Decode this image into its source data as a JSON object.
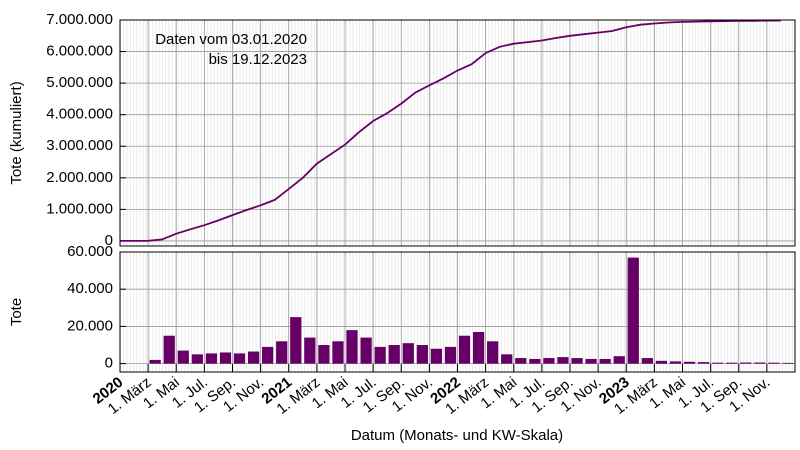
{
  "chart_data": [
    {
      "type": "line",
      "annotation": [
        "Daten vom 03.01.2020",
        "bis 19.12.2023"
      ],
      "ylabel": "Tote (kumuliert)",
      "x": [
        "2020-01",
        "2020-02",
        "2020-03",
        "2020-04",
        "2020-05",
        "2020-06",
        "2020-07",
        "2020-08",
        "2020-09",
        "2020-10",
        "2020-11",
        "2020-12",
        "2021-01",
        "2021-02",
        "2021-03",
        "2021-04",
        "2021-05",
        "2021-06",
        "2021-07",
        "2021-08",
        "2021-09",
        "2021-10",
        "2021-11",
        "2021-12",
        "2022-01",
        "2022-02",
        "2022-03",
        "2022-04",
        "2022-05",
        "2022-06",
        "2022-07",
        "2022-08",
        "2022-09",
        "2022-10",
        "2022-11",
        "2022-12",
        "2023-01",
        "2023-02",
        "2023-03",
        "2023-04",
        "2023-05",
        "2023-06",
        "2023-07",
        "2023-08",
        "2023-09",
        "2023-10",
        "2023-11",
        "2023-12"
      ],
      "series": [
        {
          "color": "#660066",
          "values": [
            0,
            0,
            5000,
            50000,
            230000,
            370000,
            500000,
            650000,
            820000,
            980000,
            1130000,
            1300000,
            1650000,
            2000000,
            2450000,
            2750000,
            3050000,
            3450000,
            3800000,
            4050000,
            4350000,
            4700000,
            4930000,
            5150000,
            5400000,
            5600000,
            5950000,
            6150000,
            6250000,
            6300000,
            6350000,
            6430000,
            6500000,
            6550000,
            6600000,
            6650000,
            6770000,
            6850000,
            6890000,
            6920000,
            6940000,
            6950000,
            6960000,
            6965000,
            6970000,
            6975000,
            6980000,
            6985000
          ]
        }
      ],
      "xlim": [
        "2020-01",
        "2024-01"
      ],
      "ylim": [
        -160000,
        7000000
      ],
      "yticks": [
        0,
        {
          "value": 1000000,
          "label": "1.000.000"
        },
        {
          "value": 2000000,
          "label": "2.000.000"
        },
        {
          "value": 3000000,
          "label": "3.000.000"
        },
        {
          "value": 4000000,
          "label": "4.000.000"
        },
        {
          "value": 5000000,
          "label": "5.000.000"
        },
        {
          "value": 6000000,
          "label": "6.000.000"
        },
        {
          "value": 7000000,
          "label": "7.000.000"
        }
      ],
      "grid": true
    },
    {
      "type": "bar",
      "ylabel": "Tote",
      "xlabel": "Datum (Monats- und KW-Skala)",
      "x": [
        "2020-01",
        "2020-02",
        "2020-03",
        "2020-04",
        "2020-05",
        "2020-06",
        "2020-07",
        "2020-08",
        "2020-09",
        "2020-10",
        "2020-11",
        "2020-12",
        "2021-01",
        "2021-02",
        "2021-03",
        "2021-04",
        "2021-05",
        "2021-06",
        "2021-07",
        "2021-08",
        "2021-09",
        "2021-10",
        "2021-11",
        "2021-12",
        "2022-01",
        "2022-02",
        "2022-03",
        "2022-04",
        "2022-05",
        "2022-06",
        "2022-07",
        "2022-08",
        "2022-09",
        "2022-10",
        "2022-11",
        "2022-12",
        "2023-01",
        "2023-02",
        "2023-03",
        "2023-04",
        "2023-05",
        "2023-06",
        "2023-07",
        "2023-08",
        "2023-09",
        "2023-10",
        "2023-11",
        "2023-12"
      ],
      "series": [
        {
          "color": "#660066",
          "values": [
            0,
            0,
            2000,
            15000,
            7000,
            5000,
            5500,
            6000,
            5500,
            6500,
            9000,
            12000,
            25000,
            14000,
            10000,
            12000,
            18000,
            14000,
            9000,
            10000,
            11000,
            10000,
            8000,
            9000,
            15000,
            17000,
            12000,
            5000,
            3000,
            2500,
            3000,
            3500,
            3000,
            2500,
            2500,
            4000,
            57000,
            3000,
            1500,
            1200,
            1000,
            800,
            500,
            500,
            600,
            600,
            500,
            400
          ]
        }
      ],
      "xlim": [
        "2020-01",
        "2024-01"
      ],
      "xticks": [
        {
          "value": "2020-01",
          "label": "2020"
        },
        {
          "value": "2020-03",
          "label": "1. März"
        },
        {
          "value": "2020-05",
          "label": "1. Mai"
        },
        {
          "value": "2020-07",
          "label": "1. Jul."
        },
        {
          "value": "2020-09",
          "label": "1. Sep."
        },
        {
          "value": "2020-11",
          "label": "1. Nov."
        },
        {
          "value": "2021-01",
          "label": "2021"
        },
        {
          "value": "2021-03",
          "label": "1. März"
        },
        {
          "value": "2021-05",
          "label": "1. Mai"
        },
        {
          "value": "2021-07",
          "label": "1. Jul."
        },
        {
          "value": "2021-09",
          "label": "1. Sep."
        },
        {
          "value": "2021-11",
          "label": "1. Nov."
        },
        {
          "value": "2022-01",
          "label": "2022"
        },
        {
          "value": "2022-03",
          "label": "1. März"
        },
        {
          "value": "2022-05",
          "label": "1. Mai"
        },
        {
          "value": "2022-07",
          "label": "1. Jul."
        },
        {
          "value": "2022-09",
          "label": "1. Sep."
        },
        {
          "value": "2022-11",
          "label": "1. Nov."
        },
        {
          "value": "2023-01",
          "label": "2023"
        },
        {
          "value": "2023-03",
          "label": "1. März"
        },
        {
          "value": "2023-05",
          "label": "1. Mai"
        },
        {
          "value": "2023-07",
          "label": "1. Jul."
        },
        {
          "value": "2023-09",
          "label": "1. Sep."
        },
        {
          "value": "2023-11",
          "label": "1. Nov."
        }
      ],
      "ylim": [
        -4500,
        60000
      ],
      "yticks": [
        0,
        {
          "value": 20000,
          "label": "20.000"
        },
        {
          "value": 40000,
          "label": "40.000"
        },
        {
          "value": 60000,
          "label": "60.000"
        }
      ],
      "grid": true
    }
  ]
}
